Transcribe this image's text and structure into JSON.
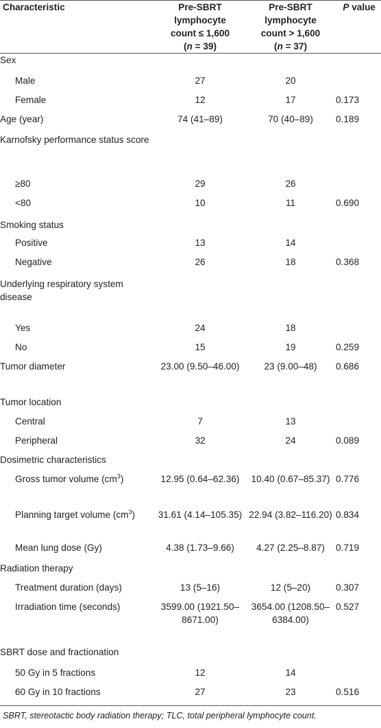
{
  "table": {
    "headers": {
      "characteristic": "Characteristic",
      "group1_line1": "Pre-SBRT",
      "group1_line2": "lymphocyte",
      "group1_line3": "count ≤ 1,600",
      "group1_n_open": "(",
      "group1_n_var": "n",
      "group1_n_close": " = 39)",
      "group2_line1": "Pre-SBRT",
      "group2_line2": "lymphocyte",
      "group2_line3": "count > 1,600",
      "group2_n_open": "(",
      "group2_n_var": "n",
      "group2_n_close": " = 37)",
      "pvalue_var": "P",
      "pvalue_rest": " value"
    },
    "rows": [
      {
        "label": "Sex",
        "indent": false,
        "g1": "",
        "g2": "",
        "p": ""
      },
      {
        "label": "Male",
        "indent": true,
        "g1": "27",
        "g2": "20",
        "p": ""
      },
      {
        "label": "Female",
        "indent": true,
        "g1": "12",
        "g2": "17",
        "p": "0.173"
      },
      {
        "label": "Age (year)",
        "indent": false,
        "g1": "74 (41–89)",
        "g2": "70 (40–89)",
        "p": "0.189"
      },
      {
        "label": "Karnofsky performance status score",
        "indent": false,
        "g1": "",
        "g2": "",
        "p": ""
      },
      {
        "label": "≥80",
        "indent": true,
        "g1": "29",
        "g2": "26",
        "p": ""
      },
      {
        "label": "<80",
        "indent": true,
        "g1": "10",
        "g2": "11",
        "p": "0.690"
      },
      {
        "label": "Smoking status",
        "indent": false,
        "g1": "",
        "g2": "",
        "p": ""
      },
      {
        "label": "Positive",
        "indent": true,
        "g1": "13",
        "g2": "14",
        "p": ""
      },
      {
        "label": "Negative",
        "indent": true,
        "g1": "26",
        "g2": "18",
        "p": "0.368"
      },
      {
        "label": "Underlying respiratory system disease",
        "indent": false,
        "g1": "",
        "g2": "",
        "p": ""
      },
      {
        "label": "Yes",
        "indent": true,
        "g1": "24",
        "g2": "18",
        "p": ""
      },
      {
        "label": "No",
        "indent": true,
        "g1": "15",
        "g2": "19",
        "p": "0.259"
      },
      {
        "label": "Tumor diameter",
        "indent": false,
        "g1": "23.00 (9.50–46.00)",
        "g2": "23 (9.00–48)",
        "p": "0.686"
      },
      {
        "label": "Tumor location",
        "indent": false,
        "g1": "",
        "g2": "",
        "p": ""
      },
      {
        "label": "Central",
        "indent": true,
        "g1": "7",
        "g2": "13",
        "p": ""
      },
      {
        "label": "Peripheral",
        "indent": true,
        "g1": "32",
        "g2": "24",
        "p": "0.089"
      },
      {
        "label": "Dosimetric characteristics",
        "indent": false,
        "g1": "",
        "g2": "",
        "p": ""
      },
      {
        "label": "Gross tumor volume (cm",
        "sup": "3",
        "label_after": ")",
        "indent": true,
        "g1": "12.95 (0.64–62.36)",
        "g2": "10.40 (0.67–85.37)",
        "p": "0.776"
      },
      {
        "label": "Planning target volume (cm",
        "sup": "3",
        "label_after": ")",
        "indent": true,
        "g1": "31.61 (4.14–105.35)",
        "g2": "22.94 (3.82–116.20)",
        "p": "0.834"
      },
      {
        "label": "Mean lung dose (Gy)",
        "indent": true,
        "g1": "4.38 (1.73–9.66)",
        "g2": "4.27 (2.25–8.87)",
        "p": "0.719"
      },
      {
        "label": "Radiation therapy",
        "indent": false,
        "g1": "",
        "g2": "",
        "p": ""
      },
      {
        "label": "Treatment duration (days)",
        "indent": true,
        "g1": "13 (5–16)",
        "g2": "12 (5–20)",
        "p": "0.307"
      },
      {
        "label": "Irradiation time (seconds)",
        "indent": true,
        "g1": "3599.00 (1921.50– 8671.00)",
        "g2": "3654.00 (1208.50– 6384.00)",
        "p": "0.527"
      },
      {
        "label": "SBRT dose and fractionation",
        "indent": false,
        "g1": "",
        "g2": "",
        "p": ""
      },
      {
        "label": "50 Gy in 5 fractions",
        "indent": true,
        "g1": "12",
        "g2": "14",
        "p": ""
      },
      {
        "label": "60 Gy in 10 fractions",
        "indent": true,
        "g1": "27",
        "g2": "23",
        "p": "0.516"
      }
    ]
  },
  "footnote": "SBRT, stereotactic body radiation therapy; TLC, total peripheral lymphocyte count."
}
